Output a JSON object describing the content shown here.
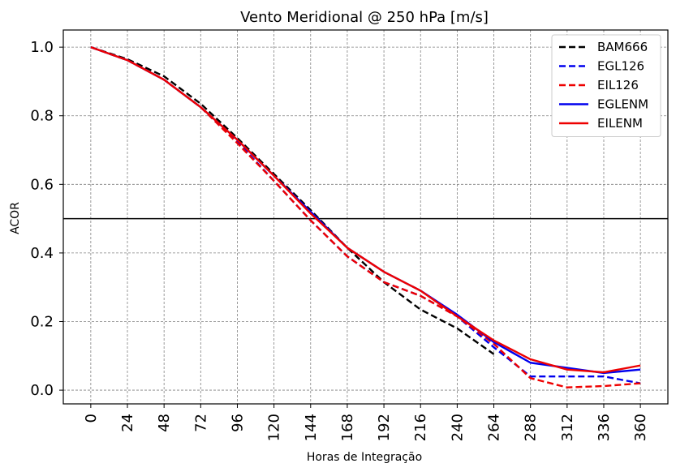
{
  "chart_data": {
    "type": "line",
    "title": "Vento Meridional @ 250 hPa [m/s]",
    "xlabel": "Horas de Integração",
    "ylabel": "ACOR",
    "x": [
      0,
      24,
      48,
      72,
      96,
      120,
      144,
      168,
      192,
      216,
      240,
      264,
      288,
      312,
      336,
      360
    ],
    "xticks": [
      "0",
      "24",
      "48",
      "72",
      "96",
      "120",
      "144",
      "168",
      "192",
      "216",
      "240",
      "264",
      "288",
      "312",
      "336",
      "360"
    ],
    "yticks": [
      "0.0",
      "0.2",
      "0.4",
      "0.6",
      "0.8",
      "1.0"
    ],
    "xlim": [
      -18,
      378
    ],
    "ylim": [
      -0.04,
      1.05
    ],
    "reference_line": 0.5,
    "grid": true,
    "legend_position": "top-right",
    "series": [
      {
        "name": "BAM666",
        "color": "#000000",
        "dash": "dashed",
        "values": [
          1.0,
          0.965,
          0.915,
          0.835,
          0.735,
          0.63,
          0.525,
          0.415,
          0.315,
          0.235,
          0.18,
          0.105,
          null,
          null,
          null,
          null
        ]
      },
      {
        "name": "EGL126",
        "color": "#0000ee",
        "dash": "dashed",
        "values": [
          1.0,
          0.962,
          0.905,
          0.825,
          0.725,
          0.61,
          0.495,
          0.39,
          0.315,
          0.275,
          0.215,
          0.125,
          0.04,
          0.04,
          0.04,
          0.02
        ]
      },
      {
        "name": "EIL126",
        "color": "#ee0000",
        "dash": "dashed",
        "values": [
          1.0,
          0.962,
          0.905,
          0.825,
          0.72,
          0.61,
          0.495,
          0.39,
          0.315,
          0.275,
          0.215,
          0.135,
          0.035,
          0.008,
          0.012,
          0.02
        ]
      },
      {
        "name": "EGLENM",
        "color": "#0000ee",
        "dash": "solid",
        "values": [
          1.0,
          0.962,
          0.905,
          0.825,
          0.73,
          0.625,
          0.52,
          0.415,
          0.345,
          0.29,
          0.22,
          0.14,
          0.08,
          0.065,
          0.05,
          0.06
        ]
      },
      {
        "name": "EILENM",
        "color": "#ee0000",
        "dash": "solid",
        "values": [
          1.0,
          0.962,
          0.905,
          0.825,
          0.73,
          0.625,
          0.515,
          0.415,
          0.345,
          0.29,
          0.215,
          0.145,
          0.09,
          0.06,
          0.052,
          0.072
        ]
      }
    ]
  }
}
